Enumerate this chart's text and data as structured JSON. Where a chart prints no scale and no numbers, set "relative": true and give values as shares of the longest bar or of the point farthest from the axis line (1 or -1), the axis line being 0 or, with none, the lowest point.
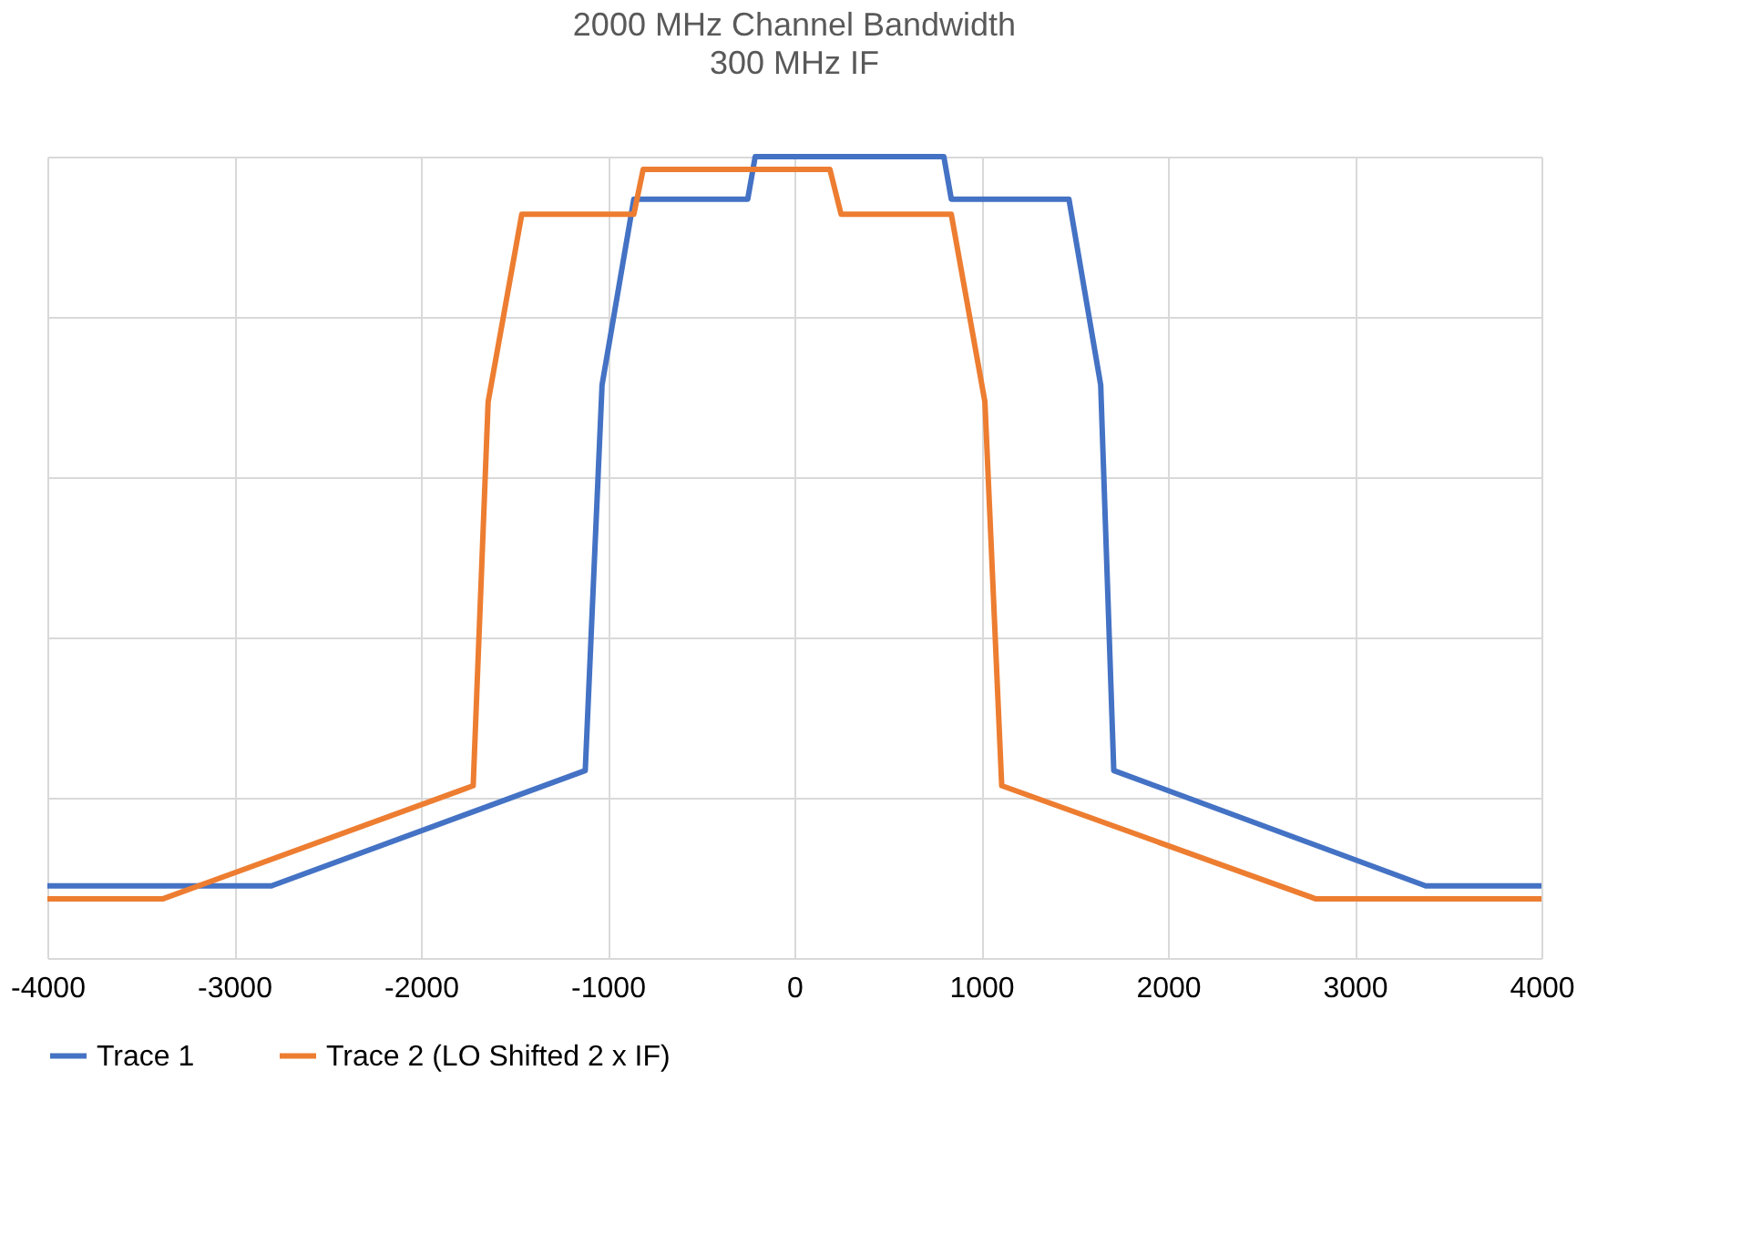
{
  "chart_data": {
    "type": "line",
    "title": "2000 MHz Channel Bandwidth",
    "subtitle": "300 MHz IF",
    "relative": true,
    "xlim": [
      -4000,
      4000
    ],
    "xticks": [
      -4000,
      -3000,
      -2000,
      -1000,
      0,
      1000,
      2000,
      3000,
      4000
    ],
    "grid": true,
    "legend": "bottom",
    "line_style": "solid",
    "marker": "none",
    "series": [
      {
        "name": "Trace 1",
        "color": "#4472c4",
        "x": [
          -4000,
          -2800,
          -1120,
          -1030,
          -860,
          -250,
          -210,
          800,
          840,
          1470,
          1640,
          1710,
          3380,
          4000
        ],
        "values": [
          0.09,
          0.09,
          0.234,
          0.715,
          0.947,
          0.947,
          1.0,
          1.0,
          0.947,
          0.947,
          0.715,
          0.234,
          0.09,
          0.09
        ]
      },
      {
        "name": "Trace 2 (LO Shifted 2 x IF)",
        "color": "#ed7d31",
        "x": [
          -4000,
          -3380,
          -1720,
          -1640,
          -1460,
          -860,
          -810,
          190,
          250,
          840,
          1020,
          1110,
          2790,
          4000
        ],
        "values": [
          0.074,
          0.074,
          0.215,
          0.694,
          0.928,
          0.928,
          0.984,
          0.984,
          0.928,
          0.928,
          0.694,
          0.215,
          0.074,
          0.074
        ]
      }
    ]
  }
}
